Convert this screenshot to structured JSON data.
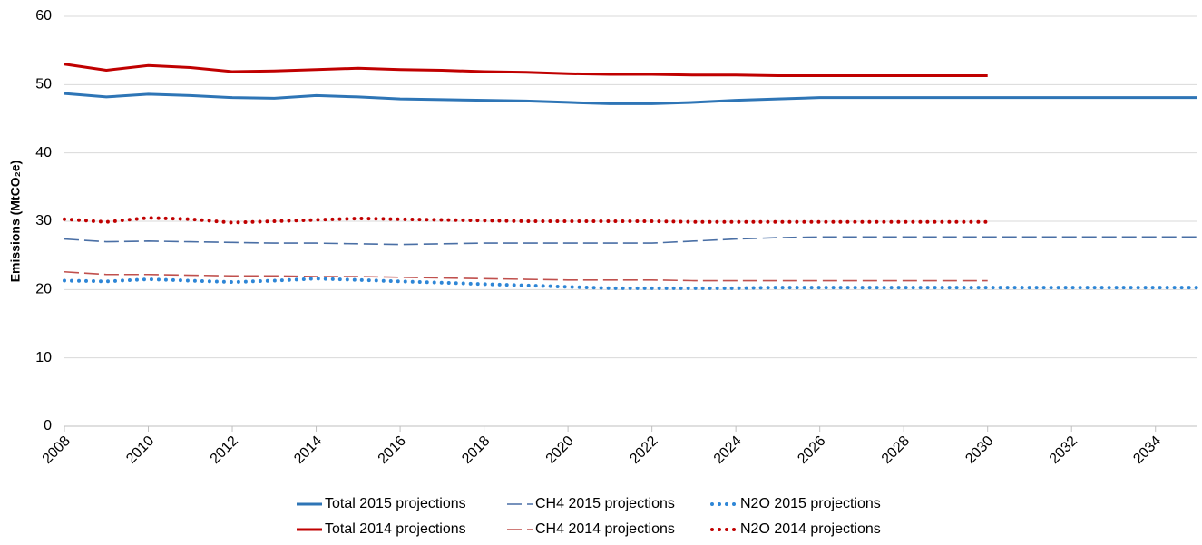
{
  "chart_data": {
    "type": "line",
    "y_label": "Emissions (MtCO₂e)",
    "x": [
      2008,
      2009,
      2010,
      2011,
      2012,
      2013,
      2014,
      2015,
      2016,
      2017,
      2018,
      2019,
      2020,
      2021,
      2022,
      2023,
      2024,
      2025,
      2026,
      2027,
      2028,
      2029,
      2030,
      2031,
      2032,
      2033,
      2034,
      2035
    ],
    "xlim": [
      2008,
      2035
    ],
    "xticks": [
      2008,
      2010,
      2012,
      2014,
      2016,
      2018,
      2020,
      2022,
      2024,
      2026,
      2028,
      2030,
      2032,
      2034
    ],
    "ylim": [
      0,
      60
    ],
    "yticks": [
      0,
      10,
      20,
      30,
      40,
      50,
      60
    ],
    "grid": true,
    "legend": "bottom",
    "series": [
      {
        "name": "Total 2015 projections",
        "color": "#2e75b6",
        "dash": "solid",
        "values": [
          48.7,
          48.2,
          48.6,
          48.4,
          48.1,
          48.0,
          48.4,
          48.2,
          47.9,
          47.8,
          47.7,
          47.6,
          47.4,
          47.2,
          47.2,
          47.4,
          47.7,
          47.9,
          48.1,
          48.1,
          48.1,
          48.1,
          48.1,
          48.1,
          48.1,
          48.1,
          48.1,
          48.1
        ]
      },
      {
        "name": "CH4 2015 projections",
        "color": "#4a6fa5",
        "dash": "dashed",
        "values": [
          27.4,
          27.0,
          27.1,
          27.0,
          26.9,
          26.8,
          26.8,
          26.7,
          26.6,
          26.7,
          26.8,
          26.8,
          26.8,
          26.8,
          26.8,
          27.1,
          27.4,
          27.6,
          27.7,
          27.7,
          27.7,
          27.7,
          27.7,
          27.7,
          27.7,
          27.7,
          27.7,
          27.7
        ]
      },
      {
        "name": "N2O 2015 projections",
        "color": "#2e86d6",
        "dash": "dotted",
        "values": [
          21.3,
          21.2,
          21.5,
          21.3,
          21.1,
          21.3,
          21.6,
          21.4,
          21.2,
          21.0,
          20.8,
          20.6,
          20.4,
          20.2,
          20.2,
          20.2,
          20.2,
          20.3,
          20.3,
          20.3,
          20.3,
          20.3,
          20.3,
          20.3,
          20.3,
          20.3,
          20.3,
          20.3
        ]
      },
      {
        "name": "Total 2014 projections",
        "color": "#c00000",
        "dash": "solid",
        "values": [
          53.0,
          52.1,
          52.8,
          52.5,
          51.9,
          52.0,
          52.2,
          52.4,
          52.2,
          52.1,
          51.9,
          51.8,
          51.6,
          51.5,
          51.5,
          51.4,
          51.4,
          51.3,
          51.3,
          51.3,
          51.3,
          51.3,
          51.3,
          null,
          null,
          null,
          null,
          null
        ]
      },
      {
        "name": "CH4 2014 projections",
        "color": "#c0504d",
        "dash": "dashed",
        "values": [
          22.6,
          22.2,
          22.2,
          22.1,
          22.0,
          22.0,
          21.9,
          21.9,
          21.8,
          21.7,
          21.6,
          21.5,
          21.4,
          21.4,
          21.4,
          21.3,
          21.3,
          21.3,
          21.3,
          21.3,
          21.3,
          21.3,
          21.3,
          null,
          null,
          null,
          null,
          null
        ]
      },
      {
        "name": "N2O 2014 projections",
        "color": "#c00000",
        "dash": "dotted",
        "values": [
          30.3,
          29.9,
          30.5,
          30.3,
          29.8,
          30.0,
          30.2,
          30.4,
          30.3,
          30.2,
          30.1,
          30.0,
          30.0,
          30.0,
          30.0,
          29.9,
          29.9,
          29.9,
          29.9,
          29.9,
          29.9,
          29.9,
          29.9,
          null,
          null,
          null,
          null,
          null
        ]
      }
    ]
  }
}
